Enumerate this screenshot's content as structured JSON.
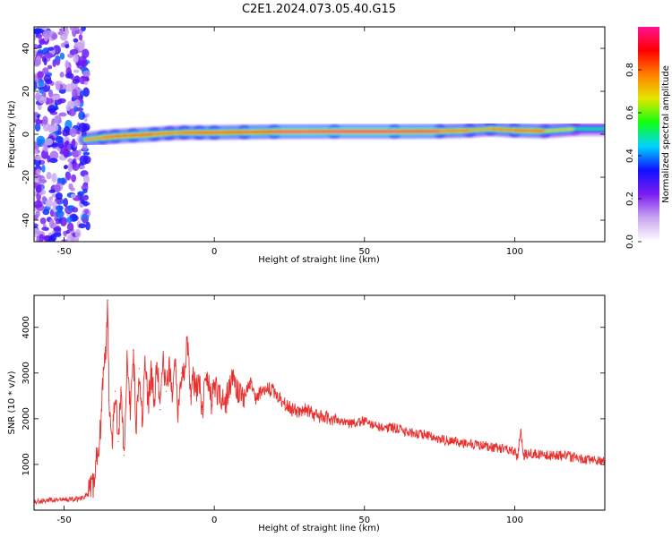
{
  "figure": {
    "title": "C2E1.2024.073.05.40.G15"
  },
  "chart_data": [
    {
      "type": "heatmap",
      "xlabel": "Height of straight line (km)",
      "ylabel": "Frequency (Hz)",
      "xlim": [
        -60,
        130
      ],
      "ylim": [
        -50,
        50
      ],
      "x_ticks": [
        -50,
        0,
        50,
        100
      ],
      "y_ticks": [
        -40,
        -20,
        0,
        20,
        40
      ],
      "ridge": [
        {
          "x": -43,
          "y": -2.5,
          "amp": 0.7
        },
        {
          "x": -37,
          "y": -1.5,
          "amp": 0.9
        },
        {
          "x": -33,
          "y": -1.0,
          "amp": 0.85
        },
        {
          "x": -27,
          "y": -0.5,
          "amp": 0.9
        },
        {
          "x": -20,
          "y": 0.0,
          "amp": 0.9
        },
        {
          "x": -15,
          "y": 0.5,
          "amp": 0.8
        },
        {
          "x": -10,
          "y": 0.8,
          "amp": 0.85
        },
        {
          "x": -5,
          "y": 0.8,
          "amp": 0.9
        },
        {
          "x": 0,
          "y": 0.8,
          "amp": 0.9
        },
        {
          "x": 10,
          "y": 1.0,
          "amp": 0.9
        },
        {
          "x": 20,
          "y": 1.2,
          "amp": 0.95
        },
        {
          "x": 40,
          "y": 1.3,
          "amp": 1.0
        },
        {
          "x": 60,
          "y": 1.3,
          "amp": 1.0
        },
        {
          "x": 75,
          "y": 1.4,
          "amp": 0.95
        },
        {
          "x": 85,
          "y": 1.8,
          "amp": 0.75
        },
        {
          "x": 92,
          "y": 2.5,
          "amp": 0.8
        },
        {
          "x": 100,
          "y": 1.8,
          "amp": 0.85
        },
        {
          "x": 110,
          "y": 1.5,
          "amp": 0.9
        },
        {
          "x": 120,
          "y": 2.5,
          "amp": 0.55
        },
        {
          "x": 130,
          "y": 2.5,
          "amp": 0.5
        }
      ],
      "colorbar": {
        "label": "Normalized spectral amplitude",
        "ticks": [
          "0.0",
          "0.2",
          "0.4",
          "0.6",
          "0.8"
        ],
        "range": [
          0,
          1
        ],
        "colors": [
          "#ffffff",
          "#c9a6f0",
          "#7a1cf0",
          "#1010ff",
          "#00d4ff",
          "#10ff10",
          "#e6e600",
          "#ff8000",
          "#ff0000",
          "#ff1090"
        ]
      }
    },
    {
      "type": "line",
      "xlabel": "Height of straight line (km)",
      "ylabel": "SNR (10 * v/v)",
      "xlim": [
        -60,
        130
      ],
      "ylim": [
        0,
        4700
      ],
      "x_ticks": [
        -50,
        0,
        50,
        100
      ],
      "y_ticks": [
        1000,
        2000,
        3000,
        4000
      ],
      "color": "#e8312f",
      "x": [
        -60,
        -55,
        -50,
        -45,
        -42,
        -40,
        -39,
        -38,
        -37,
        -36,
        -35.5,
        -35,
        -34,
        -33,
        -32,
        -31,
        -30,
        -29,
        -28,
        -27,
        -26,
        -25,
        -24,
        -23,
        -22,
        -21,
        -20,
        -19,
        -18,
        -17,
        -16,
        -15,
        -14,
        -13,
        -12,
        -11,
        -10,
        -9,
        -8,
        -7,
        -6,
        -5,
        -4,
        -3,
        -2,
        -1,
        0,
        2,
        4,
        6,
        8,
        10,
        12,
        14,
        16,
        18,
        20,
        22,
        24,
        26,
        28,
        30,
        35,
        40,
        45,
        50,
        55,
        60,
        65,
        70,
        75,
        80,
        85,
        90,
        95,
        100,
        101,
        102,
        103,
        105,
        110,
        115,
        120,
        125,
        130
      ],
      "y": [
        180,
        220,
        230,
        250,
        350,
        600,
        1200,
        1700,
        3000,
        3500,
        4600,
        2400,
        1600,
        2600,
        1500,
        2700,
        1200,
        3300,
        2200,
        3500,
        1900,
        3100,
        2000,
        3200,
        2300,
        3000,
        2400,
        3200,
        2200,
        3300,
        2600,
        3100,
        2500,
        3300,
        2100,
        3000,
        3000,
        3800,
        2500,
        2900,
        2600,
        2900,
        2100,
        3000,
        2800,
        2400,
        2700,
        2500,
        2400,
        2900,
        2600,
        2500,
        2800,
        2400,
        2700,
        2650,
        2600,
        2450,
        2300,
        2200,
        2150,
        2200,
        2050,
        2000,
        1900,
        1950,
        1800,
        1800,
        1700,
        1650,
        1550,
        1500,
        1450,
        1400,
        1350,
        1300,
        1150,
        1750,
        1200,
        1250,
        1200,
        1200,
        1150,
        1100,
        1050
      ]
    }
  ]
}
